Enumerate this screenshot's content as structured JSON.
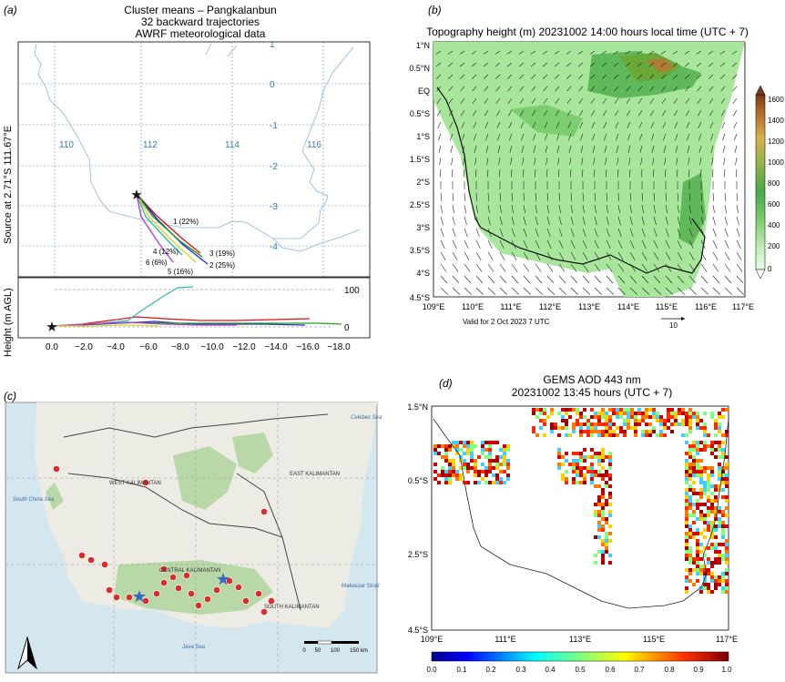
{
  "panel_a": {
    "label": "(a)",
    "title_lines": [
      "Cluster means – Pangkalanbun",
      "32 backward trajectories",
      "AWRF meteorological data"
    ],
    "ylabel": "Source at  2.71°S  111.67°E",
    "lon_labels": [
      "110",
      "112",
      "114",
      "116"
    ],
    "lat_labels": [
      "1",
      "0",
      "-1",
      "-2",
      "-3",
      "-4"
    ],
    "clusters": [
      "1 (22%)",
      "2 (25%)",
      "3 (19%)",
      "4 (12%)",
      "5 (16%)",
      "6 (6%)"
    ],
    "height_ylabel": "Height (m AGL)",
    "height_ticks": [
      "100",
      "0"
    ],
    "height_xticks": [
      "0.0",
      "−2.0",
      "−4.0",
      "−6.0",
      "−8.0",
      "−10.0",
      "−12.0",
      "−14.0",
      "−16.0",
      "−18.0"
    ]
  },
  "panel_b": {
    "label": "(b)",
    "title": "Topography height (m) 20231002 14:00 hours local time (UTC + 7)",
    "lat_labels": [
      "1°N",
      "0.5°N",
      "EQ",
      "0.5°S",
      "1°S",
      "1.5°S",
      "2°S",
      "2.5°S",
      "3°S",
      "3.5°S",
      "4°S",
      "4.5°S"
    ],
    "lon_labels": [
      "109°E",
      "110°E",
      "111°E",
      "112°E",
      "113°E",
      "114°E",
      "115°E",
      "116°E",
      "117°E"
    ],
    "colorbar_ticks": [
      "1600",
      "1400",
      "1200",
      "1000",
      "800",
      "600",
      "400",
      "200",
      "0"
    ],
    "valid_text": "Valid for 2 Oct 2023 7 UTC",
    "ref_vector": "10"
  },
  "panel_c": {
    "label": "(c)",
    "region_labels": [
      "WEST KALIMANTAN",
      "EAST KALIMANTAN",
      "CENTRAL KALIMANTAN",
      "SOUTH KALIMANTAN"
    ],
    "sea_labels": [
      "Celebes Sea",
      "South China Sea",
      "Makassar Strait",
      "Java Sea"
    ],
    "scale_ticks": [
      "0",
      "50",
      "100",
      "150 km"
    ]
  },
  "panel_d": {
    "label": "(d)",
    "title_lines": [
      "GEMS AOD 443 nm",
      "20231002 13:45 hours (UTC + 7)"
    ],
    "lat_labels": [
      "1.5°N",
      "0.5°S",
      "2.5°S",
      "4.5°S"
    ],
    "lon_labels": [
      "109°E",
      "111°E",
      "113°E",
      "115°E",
      "117°E"
    ],
    "colorbar_ticks": [
      "0.0",
      "0.1",
      "0.2",
      "0.3",
      "0.4",
      "0.5",
      "0.6",
      "0.7",
      "0.8",
      "0.9",
      "1.0"
    ]
  }
}
